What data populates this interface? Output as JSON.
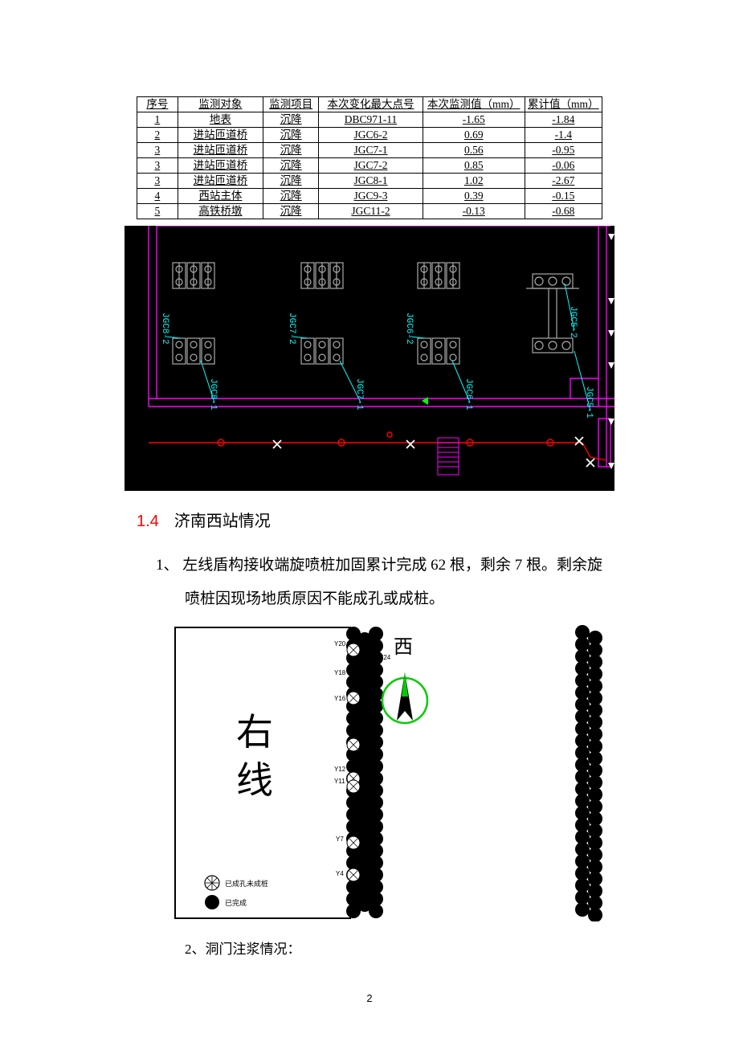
{
  "table": {
    "headers": [
      "序号",
      "监测对象",
      "监测项目",
      "本次变化最大点号",
      "本次监测值（mm）",
      "累计值（mm）"
    ],
    "rows": [
      [
        "1",
        "地表",
        "沉降",
        "DBC971-11",
        "-1.65",
        "-1.84"
      ],
      [
        "2",
        "进站匝道桥",
        "沉降",
        "JGC6-2",
        "0.69",
        "-1.4"
      ],
      [
        "3",
        "进站匝道桥",
        "沉降",
        "JGC7-1",
        "0.56",
        "-0.95"
      ],
      [
        "3",
        "进站匝道桥",
        "沉降",
        "JGC7-2",
        "0.85",
        "-0.06"
      ],
      [
        "3",
        "进站匝道桥",
        "沉降",
        "JGC8-1",
        "1.02",
        "-2.67"
      ],
      [
        "4",
        "西站主体",
        "沉降",
        "JGC9-3",
        "0.39",
        "-0.15"
      ],
      [
        "5",
        "高铁桥墩",
        "沉降",
        "JGC11-2",
        "-0.13",
        "-0.68"
      ]
    ]
  },
  "cad": {
    "bg": "#000000",
    "magenta": "#ff00ff",
    "red": "#ff0000",
    "cyan": "#00ffff",
    "gray": "#aaaaaa",
    "green": "#00ff00",
    "white": "#ffffff",
    "pink": "#ff66cc",
    "labels": [
      "JGC8-2",
      "JGC8-1",
      "JGC7-2",
      "JGC7-1",
      "JGC6-2",
      "JGC6-1",
      "JGC5-2",
      "JGC5-1"
    ]
  },
  "section": {
    "num": "1.4",
    "title": "济南西站情况"
  },
  "para1": "1、  左线盾构接收端旋喷桩加固累计完成 62 根，剩余 7 根。剩余旋喷桩因现场地质原因不能成孔或成桩。",
  "plan": {
    "main_label": "右\n线",
    "compass": "西",
    "y_labels": [
      "Y20",
      "Y24",
      "Y18",
      "Y16",
      "Y12",
      "Y11",
      "Y7",
      "Y4"
    ],
    "legend": [
      {
        "symbol": "hatched",
        "text": "已成孔未成桩"
      },
      {
        "symbol": "solid",
        "text": "已完成"
      }
    ],
    "green": "#00dd00"
  },
  "para2": "2、洞门注浆情况：",
  "page_number": "2"
}
